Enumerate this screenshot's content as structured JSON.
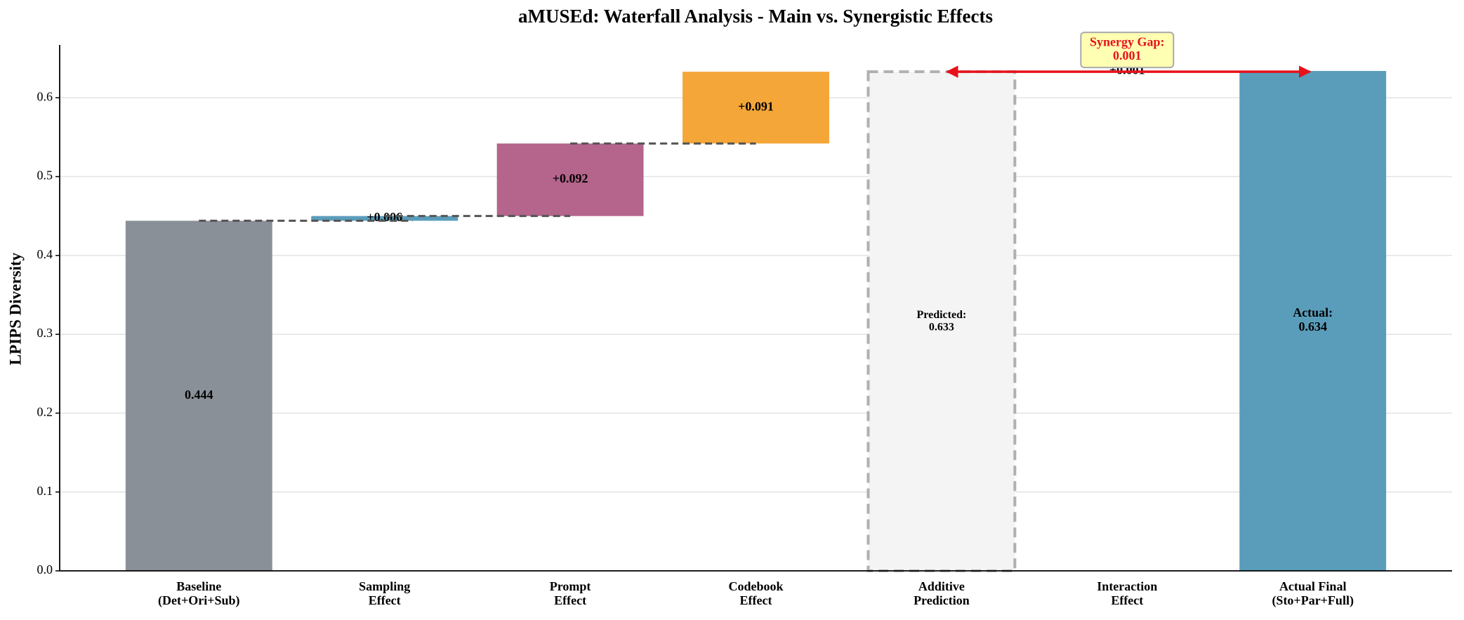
{
  "chart_data": {
    "type": "waterfall",
    "title": "aMUSEd: Waterfall Analysis - Main vs. Synergistic Effects",
    "y_label": "LPIPS Diversity",
    "categories": [
      "Baseline\n(Det+Ori+Sub)",
      "Sampling\nEffect",
      "Prompt\nEffect",
      "Codebook\nEffect",
      "Additive\nPrediction",
      "Interaction\nEffect",
      "Actual Final\n(Sto+Par+Full)"
    ],
    "values": [
      0.444,
      0.006,
      0.092,
      0.091,
      0.633,
      0.001,
      0.634
    ],
    "value_labels": [
      "0.444",
      "+0.006",
      "+0.092",
      "+0.091",
      "Predicted:\n0.633",
      "+0.001",
      "Actual:\n0.634"
    ],
    "measures": [
      "absolute",
      "relative",
      "relative",
      "relative",
      "absolute",
      "relative",
      "absolute"
    ],
    "colors": [
      "#8a9097",
      "#5a9dbb",
      "#b5648b",
      "#f4a638",
      "#f4f4f4",
      "#7fb3a0",
      "#5a9dbb"
    ],
    "dashed_outline": [
      false,
      false,
      false,
      false,
      true,
      false,
      false
    ],
    "annotation": "Synergy Gap:\n0.001",
    "ylim": [
      0,
      0.667
    ],
    "yticks": [
      {
        "value": 0,
        "label": "0.0"
      },
      0.1,
      0.2,
      0.3,
      0.4,
      0.5,
      0.6
    ],
    "grid": true
  }
}
